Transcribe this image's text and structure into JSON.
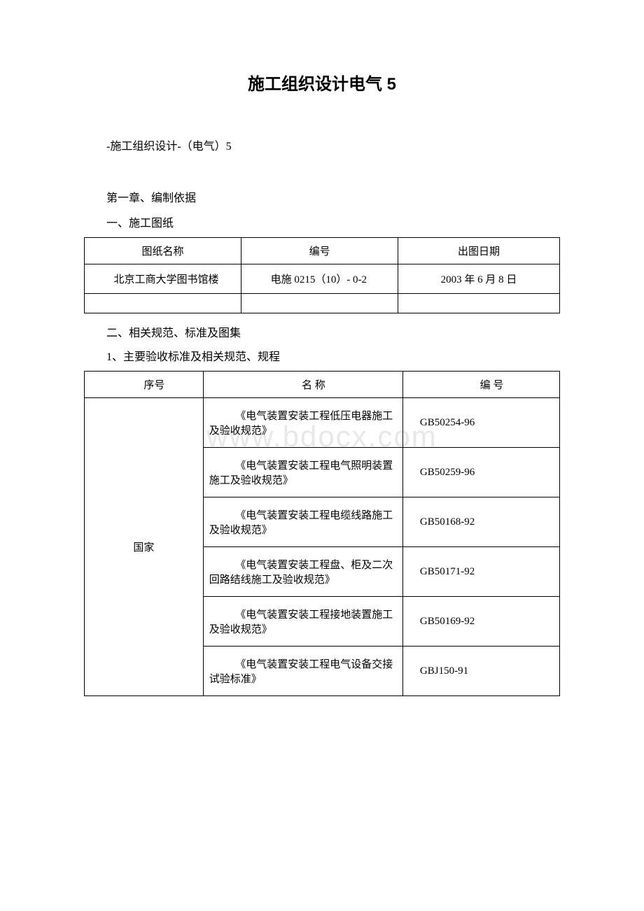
{
  "title": "施工组织设计电气 5",
  "subtitle": "-施工组织设计-（电气）5",
  "chapter": "第一章、编制依据",
  "section1": "一、施工图纸",
  "section2": "二、相关规范、标准及图集",
  "subsection2_1": "1、主要验收标准及相关规范、规程",
  "watermark": "www.bdocx.com",
  "table1": {
    "headers": [
      "图纸名称",
      "编号",
      "出图日期"
    ],
    "rows": [
      [
        "北京工商大学图书馆楼",
        "电施 0215（10）- 0-2",
        "2003 年 6 月 8 日"
      ]
    ]
  },
  "table2": {
    "headers": [
      "序号",
      "名 称",
      "编 号"
    ],
    "category": "国家",
    "rows": [
      {
        "name": "《电气装置安装工程低压电器施工及验收规范》",
        "code": "GB50254-96"
      },
      {
        "name": "《电气装置安装工程电气照明装置施工及验收规范》",
        "code": "GB50259-96"
      },
      {
        "name": "《电气装置安装工程电缆线路施工及验收规范》",
        "code": "GB50168-92"
      },
      {
        "name": "《电气装置安装工程盘、柜及二次回路结线施工及验收规范》",
        "code": "GB50171-92"
      },
      {
        "name": "《电气装置安装工程接地装置施工及验收规范》",
        "code": "GB50169-92"
      },
      {
        "name": "《电气装置安装工程电气设备交接试验标准》",
        "code": "GBJ150-91"
      }
    ]
  }
}
